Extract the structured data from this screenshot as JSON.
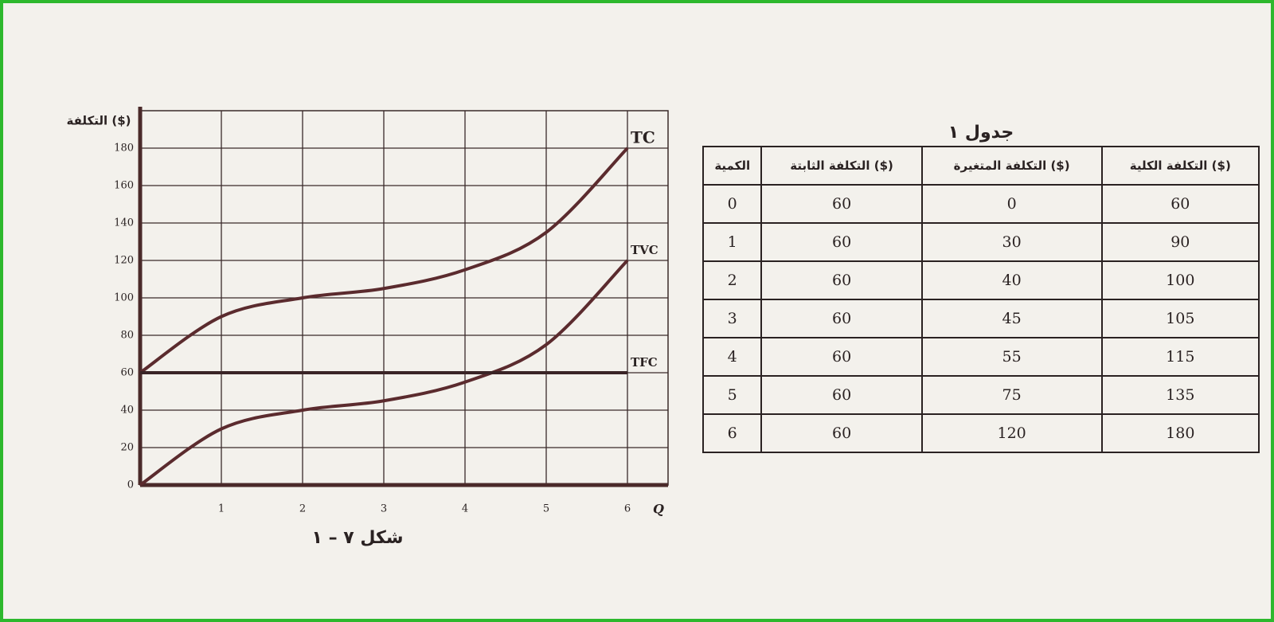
{
  "chart_data": {
    "type": "line",
    "ylabel": "التكلفة ($)",
    "xlabel": "Q",
    "caption": "شكل ٧ – ١",
    "x": [
      0,
      1,
      2,
      3,
      4,
      5,
      6
    ],
    "series": [
      {
        "name": "TC",
        "color": "#5b2b2e",
        "values": [
          60,
          90,
          100,
          105,
          115,
          135,
          180
        ]
      },
      {
        "name": "TVC",
        "color": "#5b2b2e",
        "values": [
          0,
          30,
          40,
          45,
          55,
          75,
          120
        ]
      },
      {
        "name": "TFC",
        "color": "#3a2426",
        "values": [
          60,
          60,
          60,
          60,
          60,
          60,
          60
        ]
      }
    ],
    "xlim": [
      0,
      6.5
    ],
    "xticks": [
      1,
      2,
      3,
      4,
      5,
      6
    ],
    "ylim": [
      0,
      200
    ],
    "yticks": [
      0,
      20,
      40,
      60,
      80,
      100,
      120,
      140,
      160,
      180
    ],
    "grid": true
  },
  "table": {
    "title": "جدول ١",
    "headers": [
      "الكمية",
      "التكلفة الثابتة ($)",
      "التكلفة المتغيرة ($)",
      "التكلفة الكلية ($)"
    ],
    "rows": [
      [
        0,
        60,
        0,
        60
      ],
      [
        1,
        60,
        30,
        90
      ],
      [
        2,
        60,
        40,
        100
      ],
      [
        3,
        60,
        45,
        105
      ],
      [
        4,
        60,
        55,
        115
      ],
      [
        5,
        60,
        75,
        135
      ],
      [
        6,
        60,
        120,
        180
      ]
    ]
  }
}
